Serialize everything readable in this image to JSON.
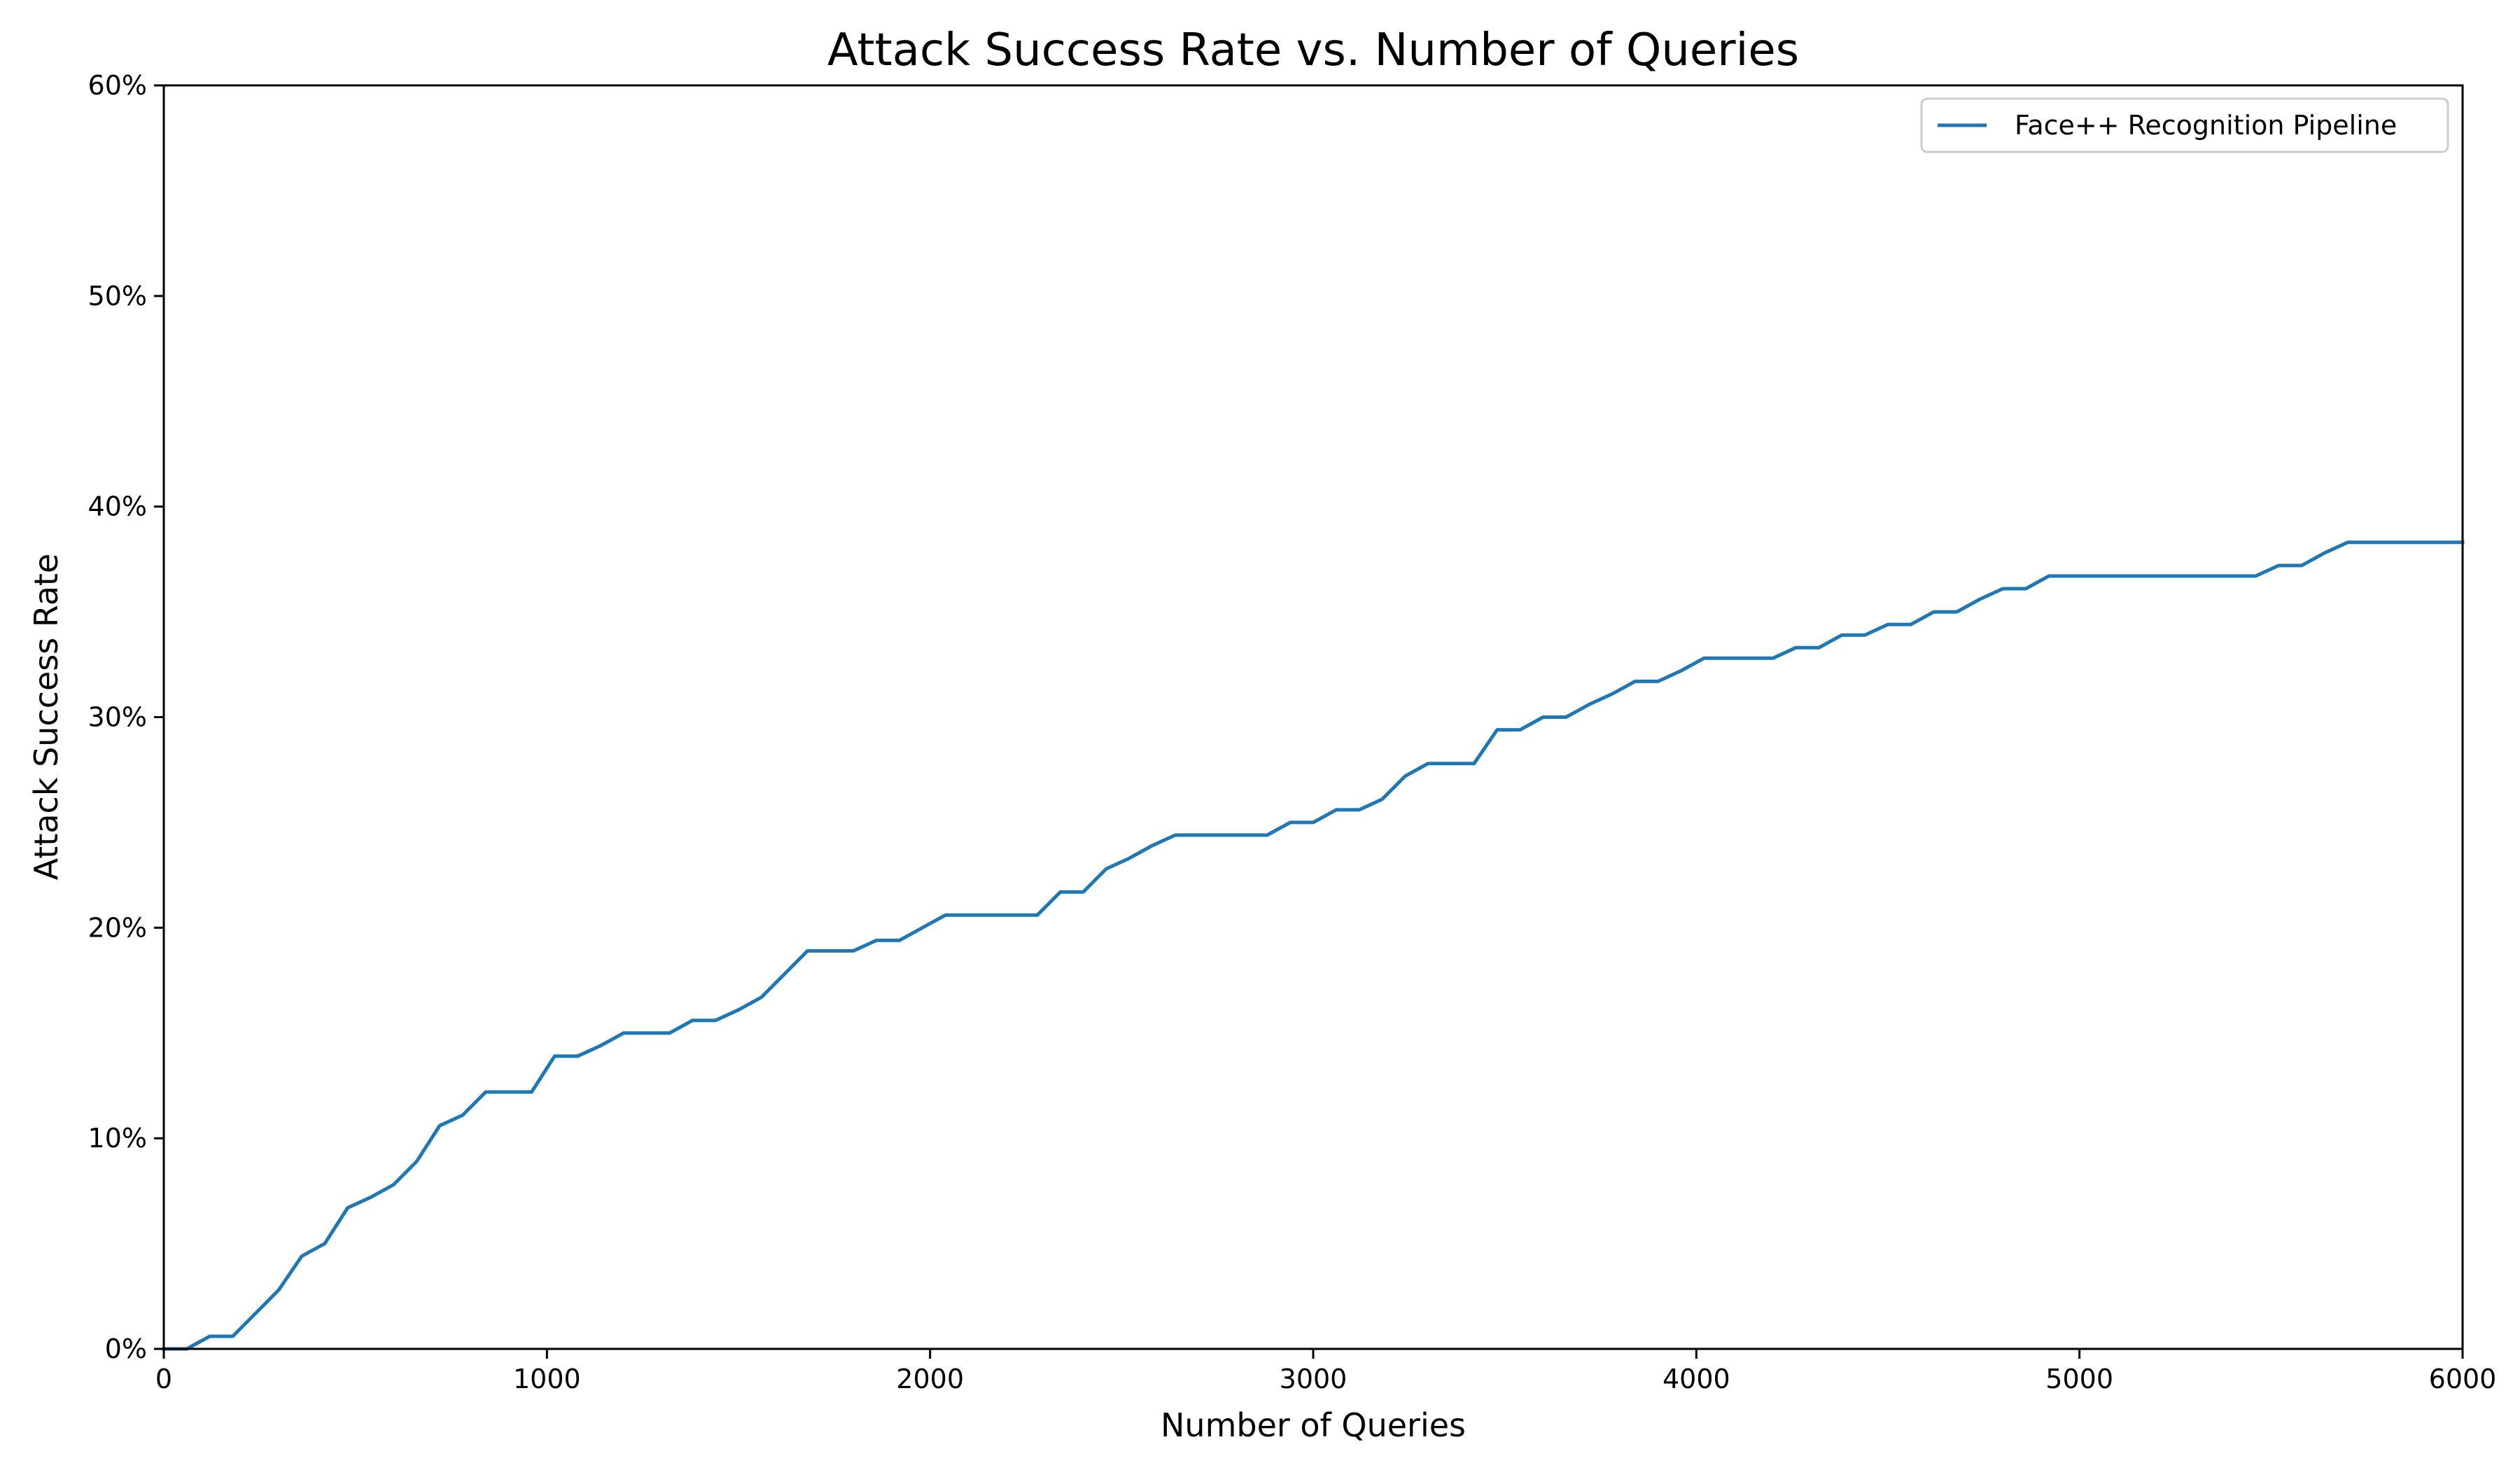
{
  "chart_data": {
    "type": "line",
    "title": "Attack Success Rate vs. Number of Queries",
    "xlabel": "Number of Queries",
    "ylabel": "Attack Success Rate",
    "xlim": [
      0,
      6000
    ],
    "ylim": [
      0,
      60
    ],
    "xticks": [
      "0",
      "1000",
      "2000",
      "3000",
      "4000",
      "5000",
      "6000"
    ],
    "yticks": [
      "0%",
      "10%",
      "20%",
      "30%",
      "40%",
      "50%",
      "60%"
    ],
    "grid": false,
    "legend_position": "top-right",
    "series": [
      {
        "name": "Face++ Recognition Pipeline",
        "color": "#1f77b4",
        "x": [
          0,
          60,
          120,
          180,
          240,
          300,
          360,
          420,
          480,
          540,
          600,
          660,
          720,
          780,
          840,
          900,
          960,
          1020,
          1080,
          1140,
          1200,
          1260,
          1320,
          1380,
          1440,
          1500,
          1560,
          1620,
          1680,
          1740,
          1800,
          1860,
          1920,
          1980,
          2040,
          2100,
          2160,
          2220,
          2280,
          2340,
          2400,
          2460,
          2520,
          2580,
          2640,
          2700,
          2760,
          2820,
          2880,
          2940,
          3000,
          3060,
          3120,
          3180,
          3240,
          3300,
          3360,
          3420,
          3480,
          3540,
          3600,
          3660,
          3720,
          3780,
          3840,
          3900,
          3960,
          4020,
          4080,
          4140,
          4200,
          4260,
          4320,
          4380,
          4440,
          4500,
          4560,
          4620,
          4680,
          4740,
          4800,
          4860,
          4920,
          4980,
          5040,
          5100,
          5160,
          5220,
          5280,
          5340,
          5400,
          5460,
          5520,
          5580,
          5640,
          5700,
          5760,
          5820,
          5880,
          5940,
          6000
        ],
        "y": [
          0,
          0,
          0.6,
          0.6,
          1.7,
          2.8,
          4.4,
          5.0,
          6.7,
          7.2,
          7.8,
          8.9,
          10.6,
          11.1,
          12.2,
          12.2,
          12.2,
          13.9,
          13.9,
          14.4,
          15.0,
          15.0,
          15.0,
          15.6,
          15.6,
          16.1,
          16.7,
          17.8,
          18.9,
          18.9,
          18.9,
          19.4,
          19.4,
          20.0,
          20.6,
          20.6,
          20.6,
          20.6,
          20.6,
          21.7,
          21.7,
          22.8,
          23.3,
          23.9,
          24.4,
          24.4,
          24.4,
          24.4,
          24.4,
          25.0,
          25.0,
          25.6,
          25.6,
          26.1,
          27.2,
          27.8,
          27.8,
          27.8,
          29.4,
          29.4,
          30.0,
          30.0,
          30.6,
          31.1,
          31.7,
          31.7,
          32.2,
          32.8,
          32.8,
          32.8,
          32.8,
          33.3,
          33.3,
          33.9,
          33.9,
          34.4,
          34.4,
          35.0,
          35.0,
          35.6,
          36.1,
          36.1,
          36.7,
          36.7,
          36.7,
          36.7,
          36.7,
          36.7,
          36.7,
          36.7,
          36.7,
          36.7,
          37.2,
          37.2,
          37.8,
          38.3,
          38.3,
          38.3,
          38.3,
          38.3,
          38.3
        ]
      }
    ]
  }
}
